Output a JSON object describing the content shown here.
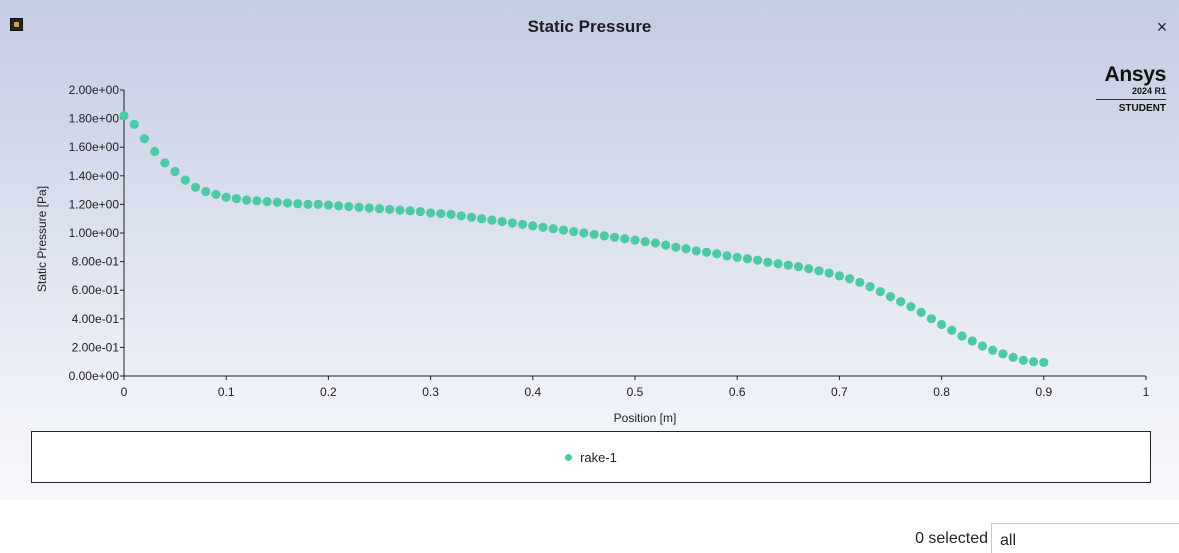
{
  "window": {
    "title": "Static Pressure",
    "close_glyph": "×",
    "app_icon": "ansys-app-icon",
    "close_icon": "close-icon"
  },
  "logo": {
    "name": "Ansys",
    "version": "2024 R1",
    "edition": "STUDENT"
  },
  "chart_data": {
    "type": "scatter",
    "xlabel": "Position [m]",
    "ylabel": "Static Pressure [Pa]",
    "xlim": [
      0,
      1
    ],
    "ylim": [
      0,
      2
    ],
    "grid": false,
    "legend_position": "bottom",
    "x_ticks": [
      "0",
      "0.1",
      "0.2",
      "0.3",
      "0.4",
      "0.5",
      "0.6",
      "0.7",
      "0.8",
      "0.9",
      "1"
    ],
    "y_ticks": [
      "0.00e+00",
      "2.00e-01",
      "4.00e-01",
      "6.00e-01",
      "8.00e-01",
      "1.00e+00",
      "1.20e+00",
      "1.40e+00",
      "1.60e+00",
      "1.80e+00",
      "2.00e+00"
    ],
    "series": [
      {
        "name": "rake-1",
        "color": "#4dc9a6",
        "points": [
          [
            0.0,
            1.82
          ],
          [
            0.01,
            1.76
          ],
          [
            0.02,
            1.66
          ],
          [
            0.03,
            1.57
          ],
          [
            0.04,
            1.49
          ],
          [
            0.05,
            1.43
          ],
          [
            0.06,
            1.37
          ],
          [
            0.07,
            1.32
          ],
          [
            0.08,
            1.29
          ],
          [
            0.09,
            1.27
          ],
          [
            0.1,
            1.25
          ],
          [
            0.11,
            1.24
          ],
          [
            0.12,
            1.23
          ],
          [
            0.13,
            1.225
          ],
          [
            0.14,
            1.22
          ],
          [
            0.15,
            1.215
          ],
          [
            0.16,
            1.21
          ],
          [
            0.17,
            1.205
          ],
          [
            0.18,
            1.2
          ],
          [
            0.19,
            1.2
          ],
          [
            0.2,
            1.195
          ],
          [
            0.21,
            1.19
          ],
          [
            0.22,
            1.185
          ],
          [
            0.23,
            1.18
          ],
          [
            0.24,
            1.175
          ],
          [
            0.25,
            1.17
          ],
          [
            0.26,
            1.165
          ],
          [
            0.27,
            1.16
          ],
          [
            0.28,
            1.155
          ],
          [
            0.29,
            1.15
          ],
          [
            0.3,
            1.14
          ],
          [
            0.31,
            1.135
          ],
          [
            0.32,
            1.13
          ],
          [
            0.33,
            1.12
          ],
          [
            0.34,
            1.11
          ],
          [
            0.35,
            1.1
          ],
          [
            0.36,
            1.09
          ],
          [
            0.37,
            1.08
          ],
          [
            0.38,
            1.07
          ],
          [
            0.39,
            1.06
          ],
          [
            0.4,
            1.05
          ],
          [
            0.41,
            1.04
          ],
          [
            0.42,
            1.03
          ],
          [
            0.43,
            1.02
          ],
          [
            0.44,
            1.01
          ],
          [
            0.45,
            1.0
          ],
          [
            0.46,
            0.99
          ],
          [
            0.47,
            0.98
          ],
          [
            0.48,
            0.97
          ],
          [
            0.49,
            0.96
          ],
          [
            0.5,
            0.95
          ],
          [
            0.51,
            0.94
          ],
          [
            0.52,
            0.93
          ],
          [
            0.53,
            0.915
          ],
          [
            0.54,
            0.9
          ],
          [
            0.55,
            0.89
          ],
          [
            0.56,
            0.875
          ],
          [
            0.57,
            0.865
          ],
          [
            0.58,
            0.855
          ],
          [
            0.59,
            0.84
          ],
          [
            0.6,
            0.83
          ],
          [
            0.61,
            0.82
          ],
          [
            0.62,
            0.81
          ],
          [
            0.63,
            0.795
          ],
          [
            0.64,
            0.785
          ],
          [
            0.65,
            0.775
          ],
          [
            0.66,
            0.765
          ],
          [
            0.67,
            0.75
          ],
          [
            0.68,
            0.735
          ],
          [
            0.69,
            0.72
          ],
          [
            0.7,
            0.7
          ],
          [
            0.71,
            0.68
          ],
          [
            0.72,
            0.655
          ],
          [
            0.73,
            0.625
          ],
          [
            0.74,
            0.59
          ],
          [
            0.75,
            0.555
          ],
          [
            0.76,
            0.52
          ],
          [
            0.77,
            0.485
          ],
          [
            0.78,
            0.445
          ],
          [
            0.79,
            0.4
          ],
          [
            0.8,
            0.36
          ],
          [
            0.81,
            0.32
          ],
          [
            0.82,
            0.28
          ],
          [
            0.83,
            0.245
          ],
          [
            0.84,
            0.21
          ],
          [
            0.85,
            0.18
          ],
          [
            0.86,
            0.155
          ],
          [
            0.87,
            0.13
          ],
          [
            0.88,
            0.11
          ],
          [
            0.89,
            0.1
          ],
          [
            0.9,
            0.095
          ]
        ]
      }
    ]
  },
  "legend": {
    "label": "rake-1"
  },
  "status": {
    "selected_text": "0 selected",
    "filter_value": "all"
  }
}
